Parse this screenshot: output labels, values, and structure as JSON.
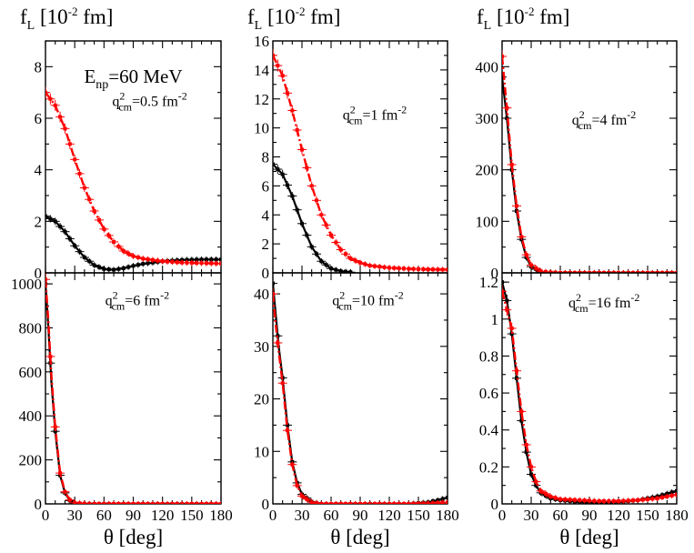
{
  "colors": {
    "black_series": "#000000",
    "red_series": "#ff0000",
    "background": "#ffffff"
  },
  "chart_data": [
    {
      "type": "line",
      "panel": "top-left",
      "ylabel": "f_L [10^-2 fm]",
      "ylabel_main": "f",
      "ylabel_sub": "L",
      "ylabel_unit_pre": " [10",
      "ylabel_unit_sup": "-2",
      "ylabel_unit_post": " fm]",
      "xlabel": "",
      "annotation": "q2cm=0.5 fm-2",
      "ann_q": "q",
      "ann_sup": "2",
      "ann_sub": "cm",
      "ann_val": "=0.5 fm",
      "ann_val_sup": "-2",
      "energy_label": "Enp=60 MeV",
      "energy_main": "E",
      "energy_sub": "np",
      "energy_val": "=60 MeV",
      "xlim": [
        0,
        180
      ],
      "ylim": [
        0,
        9
      ],
      "yticks": [
        0,
        2,
        4,
        6,
        8
      ],
      "series": [
        {
          "name": "black",
          "x": [
            0,
            10,
            20,
            30,
            40,
            50,
            60,
            70,
            80,
            90,
            100,
            120,
            140,
            160,
            180
          ],
          "values": [
            2.2,
            2.0,
            1.6,
            1.05,
            0.6,
            0.3,
            0.15,
            0.12,
            0.18,
            0.27,
            0.35,
            0.45,
            0.5,
            0.52,
            0.52
          ]
        },
        {
          "name": "red",
          "x": [
            0,
            10,
            20,
            30,
            40,
            50,
            60,
            70,
            80,
            90,
            100,
            120,
            140,
            160,
            180
          ],
          "values": [
            7.0,
            6.5,
            5.6,
            4.4,
            3.3,
            2.4,
            1.7,
            1.2,
            0.85,
            0.65,
            0.55,
            0.45,
            0.4,
            0.38,
            0.36
          ]
        }
      ]
    },
    {
      "type": "line",
      "panel": "top-middle",
      "ylabel": "f_L [10^-2 fm]",
      "ylabel_main": "f",
      "ylabel_sub": "L",
      "ylabel_unit_pre": " [10",
      "ylabel_unit_sup": "-2",
      "ylabel_unit_post": " fm]",
      "xlabel": "",
      "annotation": "q2cm=1 fm-2",
      "ann_q": "q",
      "ann_sup": "2",
      "ann_sub": "cm",
      "ann_val": "=1 fm",
      "ann_val_sup": "-2",
      "xlim": [
        0,
        180
      ],
      "ylim": [
        0,
        16
      ],
      "yticks": [
        0,
        2,
        4,
        6,
        8,
        10,
        12,
        14,
        16
      ],
      "series": [
        {
          "name": "black",
          "x": [
            0,
            10,
            20,
            30,
            40,
            50,
            60,
            70,
            80
          ],
          "values": [
            7.5,
            6.8,
            5.3,
            3.4,
            1.8,
            0.8,
            0.3,
            0.12,
            0.05
          ]
        },
        {
          "name": "red",
          "x": [
            0,
            10,
            20,
            30,
            40,
            50,
            60,
            70,
            80,
            90,
            100,
            120,
            140,
            160,
            180
          ],
          "values": [
            15.0,
            13.6,
            11.2,
            8.5,
            6.0,
            4.0,
            2.6,
            1.6,
            1.0,
            0.7,
            0.5,
            0.35,
            0.28,
            0.24,
            0.22
          ]
        }
      ]
    },
    {
      "type": "line",
      "panel": "top-right",
      "ylabel": "f_L [10^-2 fm]",
      "ylabel_main": "f",
      "ylabel_sub": "L",
      "ylabel_unit_pre": " [10",
      "ylabel_unit_sup": "-2",
      "ylabel_unit_post": " fm]",
      "xlabel": "",
      "annotation": "q2cm=4 fm-2",
      "ann_q": "q",
      "ann_sup": "2",
      "ann_sub": "cm",
      "ann_val": "=4 fm",
      "ann_val_sup": "-2",
      "xlim": [
        0,
        180
      ],
      "ylim": [
        0,
        450
      ],
      "yticks": [
        0,
        100,
        200,
        300,
        400
      ],
      "series": [
        {
          "name": "black",
          "x": [
            0,
            5,
            10,
            15,
            20,
            25,
            30,
            40,
            50,
            60,
            80,
            100,
            120,
            140,
            160,
            180
          ],
          "values": [
            380,
            300,
            200,
            120,
            65,
            30,
            12,
            2,
            0.5,
            0,
            0,
            0,
            0,
            0,
            0,
            0
          ]
        },
        {
          "name": "red",
          "x": [
            0,
            5,
            10,
            15,
            20,
            25,
            30,
            40,
            50,
            60,
            80,
            100,
            120,
            140,
            160,
            180
          ],
          "values": [
            420,
            320,
            210,
            130,
            70,
            35,
            15,
            3,
            1,
            0,
            0,
            0,
            0,
            0,
            0,
            0
          ]
        }
      ]
    },
    {
      "type": "line",
      "panel": "bottom-left",
      "ylabel": "",
      "xlabel": "θ [deg]",
      "annotation": "q2cm=6 fm-2",
      "ann_q": "q",
      "ann_sup": "2",
      "ann_sub": "cm",
      "ann_val": "=6 fm",
      "ann_val_sup": "-2",
      "xlim": [
        0,
        180
      ],
      "ylim": [
        0,
        1050
      ],
      "yticks": [
        0,
        200,
        400,
        600,
        800,
        1000
      ],
      "xticks": [
        0,
        30,
        60,
        90,
        120,
        150,
        180
      ],
      "series": [
        {
          "name": "black",
          "x": [
            0,
            3,
            6,
            10,
            15,
            20,
            25,
            30,
            40,
            50,
            60,
            80,
            100,
            120,
            140,
            160,
            180
          ],
          "values": [
            1000,
            800,
            560,
            330,
            130,
            50,
            15,
            4,
            0.5,
            0,
            0,
            0,
            0,
            0,
            0,
            0,
            0
          ]
        },
        {
          "name": "red",
          "x": [
            0,
            3,
            6,
            10,
            15,
            20,
            25,
            30,
            40,
            50,
            60,
            80,
            100,
            120,
            140,
            160,
            180
          ],
          "values": [
            1020,
            830,
            590,
            350,
            140,
            55,
            18,
            5,
            1,
            0,
            0,
            0,
            0,
            0,
            0,
            0,
            0
          ]
        }
      ]
    },
    {
      "type": "line",
      "panel": "bottom-middle",
      "ylabel": "",
      "xlabel": "θ [deg]",
      "annotation": "q2cm=10 fm-2",
      "ann_q": "q",
      "ann_sup": "2",
      "ann_sub": "cm",
      "ann_val": "=10 fm",
      "ann_val_sup": "-2",
      "xlim": [
        0,
        180
      ],
      "ylim": [
        0,
        44
      ],
      "yticks": [
        0,
        10,
        20,
        30,
        40
      ],
      "xticks": [
        0,
        30,
        60,
        90,
        120,
        150,
        180
      ],
      "series": [
        {
          "name": "black",
          "x": [
            0,
            3,
            6,
            10,
            15,
            20,
            25,
            30,
            40,
            50,
            60,
            80,
            100,
            120,
            140,
            160,
            170,
            180
          ],
          "values": [
            42,
            36,
            30,
            24,
            15,
            8,
            4,
            1.8,
            0.4,
            0,
            0,
            0,
            0,
            0,
            0,
            0.3,
            0.7,
            1.2
          ]
        },
        {
          "name": "red",
          "x": [
            0,
            3,
            6,
            10,
            15,
            20,
            25,
            30,
            40,
            50,
            60,
            80,
            100,
            120,
            140,
            160,
            180
          ],
          "values": [
            40,
            34,
            29,
            23,
            14,
            7.5,
            3.5,
            1.5,
            0.3,
            0,
            0,
            0,
            0,
            0,
            0,
            0.1,
            0.3
          ]
        }
      ]
    },
    {
      "type": "line",
      "panel": "bottom-right",
      "ylabel": "",
      "xlabel": "θ [deg]",
      "annotation": "q2cm=16 fm-2",
      "ann_q": "q",
      "ann_sup": "2",
      "ann_sub": "cm",
      "ann_val": "=16 fm",
      "ann_val_sup": "-2",
      "xlim": [
        0,
        180
      ],
      "ylim": [
        0,
        1.25
      ],
      "yticks": [
        0,
        0.2,
        0.4,
        0.6,
        0.8,
        1,
        1.2
      ],
      "xticks": [
        0,
        30,
        60,
        90,
        120,
        150,
        180
      ],
      "series": [
        {
          "name": "black",
          "x": [
            0,
            5,
            10,
            15,
            20,
            25,
            30,
            35,
            40,
            50,
            60,
            80,
            100,
            120,
            140,
            160,
            180
          ],
          "values": [
            1.2,
            1.1,
            0.92,
            0.68,
            0.45,
            0.28,
            0.16,
            0.1,
            0.06,
            0.03,
            0.02,
            0.01,
            0.005,
            0.01,
            0.02,
            0.04,
            0.07
          ]
        },
        {
          "name": "red",
          "x": [
            0,
            5,
            10,
            15,
            20,
            25,
            30,
            35,
            40,
            50,
            60,
            80,
            100,
            120,
            140,
            160,
            180
          ],
          "values": [
            1.15,
            1.05,
            0.95,
            0.72,
            0.5,
            0.32,
            0.2,
            0.12,
            0.07,
            0.04,
            0.025,
            0.02,
            0.015,
            0.015,
            0.02,
            0.03,
            0.05
          ]
        }
      ]
    }
  ]
}
